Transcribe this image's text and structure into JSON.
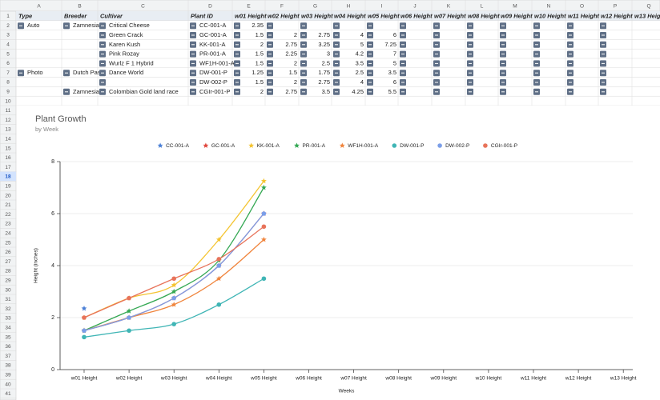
{
  "sheet": {
    "columns": [
      "A",
      "B",
      "C",
      "D",
      "E",
      "F",
      "G",
      "H",
      "I",
      "J",
      "K",
      "L",
      "M",
      "N",
      "O",
      "P",
      "Q"
    ],
    "row_numbers": [
      1,
      2,
      3,
      4,
      5,
      6,
      7,
      8,
      9,
      10,
      11,
      12,
      13,
      14,
      15,
      16,
      17,
      18,
      19,
      20,
      21,
      22,
      23,
      24,
      25,
      26,
      27,
      28,
      29,
      30,
      31,
      32,
      33,
      34,
      35,
      36,
      37,
      38,
      39,
      40,
      41
    ]
  },
  "table": {
    "header": [
      "Type",
      "Breeder",
      "Cultivar",
      "Plant ID",
      "w01 Height",
      "w02 Height",
      "w03 Height",
      "w04 Height",
      "w05 Height",
      "w06 Height",
      "w07 Height",
      "w08 Height",
      "w09 Height",
      "w10 Height",
      "w11 Height",
      "w12 Height",
      "w13 Height"
    ],
    "rows": [
      [
        "Auto",
        "Zamnesia",
        "Critical Cheese",
        "CC-001-A",
        2.35,
        null,
        null,
        null,
        null,
        null,
        null,
        null,
        null,
        null,
        null,
        null,
        null
      ],
      [
        null,
        null,
        "Green Crack",
        "GC-001-A",
        1.5,
        2,
        2.75,
        4,
        6,
        null,
        null,
        null,
        null,
        null,
        null,
        null,
        null
      ],
      [
        null,
        null,
        "Karen Kush",
        "KK-001-A",
        2,
        2.75,
        3.25,
        5,
        7.25,
        null,
        null,
        null,
        null,
        null,
        null,
        null,
        null
      ],
      [
        null,
        null,
        "Pink Rozay",
        "PR-001-A",
        1.5,
        2.25,
        3,
        4.2,
        7,
        null,
        null,
        null,
        null,
        null,
        null,
        null,
        null
      ],
      [
        null,
        null,
        "Wurlz F 1 Hybrid",
        "WF1H-001-A",
        1.5,
        2,
        2.5,
        3.5,
        5,
        null,
        null,
        null,
        null,
        null,
        null,
        null,
        null
      ],
      [
        "Photo",
        "Dutch Pas",
        "Dance World",
        "DW-001-P",
        1.25,
        1.5,
        1.75,
        2.5,
        3.5,
        null,
        null,
        null,
        null,
        null,
        null,
        null,
        null
      ],
      [
        null,
        null,
        null,
        "DW-002-P",
        1.5,
        2,
        2.75,
        4,
        6,
        null,
        null,
        null,
        null,
        null,
        null,
        null,
        null
      ],
      [
        null,
        "Zamnesia",
        "Colombian Gold land race",
        "CGIr-001-P",
        2,
        2.75,
        3.5,
        4.25,
        5.5,
        null,
        null,
        null,
        null,
        null,
        null,
        null,
        null
      ]
    ]
  },
  "chart_data": {
    "type": "line",
    "title": "Plant Growth",
    "subtitle": "by Week",
    "x_label": "Weeks",
    "y_label": "Height (inches)",
    "categories": [
      "w01 Height",
      "w02 Height",
      "w03 Height",
      "w04 Height",
      "w05 Height",
      "w06 Height",
      "w07 Height",
      "w08 Height",
      "w09 Height",
      "w10 Height",
      "w11 Height",
      "w12 Height",
      "w13 Height"
    ],
    "ylim": [
      0,
      8
    ],
    "yticks": [
      0,
      2,
      4,
      6,
      8
    ],
    "grid": true,
    "legend": "top",
    "series": [
      {
        "name": "CC-001-A",
        "color": "#4a7fd6",
        "marker": "star",
        "values": [
          2.35,
          null,
          null,
          null,
          null,
          null,
          null,
          null,
          null,
          null,
          null,
          null,
          null
        ]
      },
      {
        "name": "GC-001-A",
        "color": "#e0463c",
        "marker": "star",
        "values": [
          1.5,
          2,
          2.75,
          4,
          6,
          null,
          null,
          null,
          null,
          null,
          null,
          null,
          null
        ]
      },
      {
        "name": "KK-001-A",
        "color": "#f4c430",
        "marker": "star",
        "values": [
          2,
          2.75,
          3.25,
          5,
          7.25,
          null,
          null,
          null,
          null,
          null,
          null,
          null,
          null
        ]
      },
      {
        "name": "PR-001-A",
        "color": "#34a853",
        "marker": "star",
        "values": [
          1.5,
          2.25,
          3,
          4.2,
          7,
          null,
          null,
          null,
          null,
          null,
          null,
          null,
          null
        ]
      },
      {
        "name": "WF1H-001-A",
        "color": "#f0843c",
        "marker": "star",
        "values": [
          1.5,
          2,
          2.5,
          3.5,
          5,
          null,
          null,
          null,
          null,
          null,
          null,
          null,
          null
        ]
      },
      {
        "name": "DW-001-P",
        "color": "#3fb5b5",
        "marker": "circle",
        "values": [
          1.25,
          1.5,
          1.75,
          2.5,
          3.5,
          null,
          null,
          null,
          null,
          null,
          null,
          null,
          null
        ]
      },
      {
        "name": "DW-002-P",
        "color": "#7b9ee8",
        "marker": "circle",
        "values": [
          1.5,
          2,
          2.75,
          4,
          6,
          null,
          null,
          null,
          null,
          null,
          null,
          null,
          null
        ]
      },
      {
        "name": "CGIr-001-P",
        "color": "#e8735a",
        "marker": "circle",
        "values": [
          2,
          2.75,
          3.5,
          4.25,
          5.5,
          null,
          null,
          null,
          null,
          null,
          null,
          null,
          null
        ]
      }
    ]
  }
}
